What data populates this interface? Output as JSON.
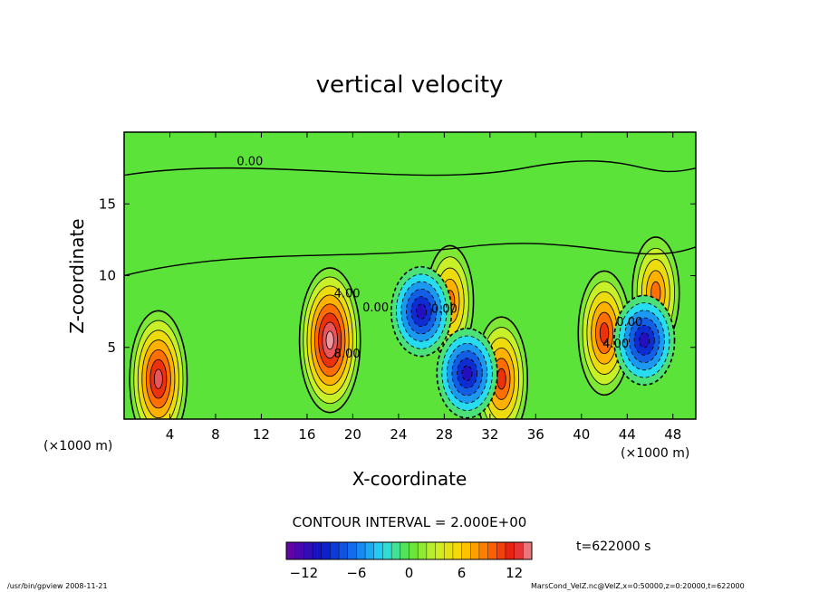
{
  "chart_data": {
    "type": "heatmap",
    "title": "vertical velocity",
    "xlabel": "X-coordinate",
    "ylabel": "Z-coordinate",
    "x_unit_left": "(×1000 m)",
    "x_unit_right": "(×1000 m)",
    "xlim": [
      0,
      50
    ],
    "ylim": [
      0,
      20
    ],
    "x_ticks": [
      4,
      8,
      12,
      16,
      20,
      24,
      28,
      32,
      36,
      40,
      44,
      48
    ],
    "y_ticks": [
      5,
      10,
      15
    ],
    "contour_interval_text": "CONTOUR INTERVAL = 2.000E+00",
    "time_label": "t=622000 s",
    "colorbar": {
      "min": -14,
      "max": 14,
      "step": 2,
      "tick_values": [
        -12,
        -6,
        0,
        6,
        12
      ]
    },
    "contour_labels": [
      {
        "text": "0.00",
        "x": 11.0,
        "y": 17.7
      },
      {
        "text": "4.00",
        "x": 19.5,
        "y": 8.5
      },
      {
        "text": "8.00",
        "x": 19.5,
        "y": 4.3
      },
      {
        "text": "0.00",
        "x": 22.0,
        "y": 7.5
      },
      {
        "text": "0.00",
        "x": 28.0,
        "y": 7.4
      },
      {
        "text": "4.00",
        "x": 43.0,
        "y": 5.0
      },
      {
        "text": "0.00",
        "x": 44.2,
        "y": 6.5
      }
    ],
    "features": [
      {
        "type": "updraft",
        "x": 3.0,
        "z": 2.8,
        "peak": 12
      },
      {
        "type": "updraft",
        "x": 18.0,
        "z": 5.5,
        "peak": 14
      },
      {
        "type": "updraft",
        "x": 28.5,
        "z": 8.2,
        "peak": 8
      },
      {
        "type": "updraft",
        "x": 33.0,
        "z": 2.8,
        "peak": 10
      },
      {
        "type": "updraft",
        "x": 42.0,
        "z": 6.0,
        "peak": 10
      },
      {
        "type": "updraft",
        "x": 46.5,
        "z": 8.8,
        "peak": 8
      },
      {
        "type": "downdraft",
        "x": 26.0,
        "z": 7.5,
        "peak": -10
      },
      {
        "type": "downdraft",
        "x": 30.0,
        "z": 3.2,
        "peak": -10
      },
      {
        "type": "downdraft",
        "x": 45.5,
        "z": 5.5,
        "peak": -10
      }
    ]
  },
  "footer": {
    "left": "/usr/bin/gpview  2008-11-21",
    "right": "MarsCond_VelZ.nc@VelZ,x=0:50000,z=0:20000,t=622000"
  }
}
